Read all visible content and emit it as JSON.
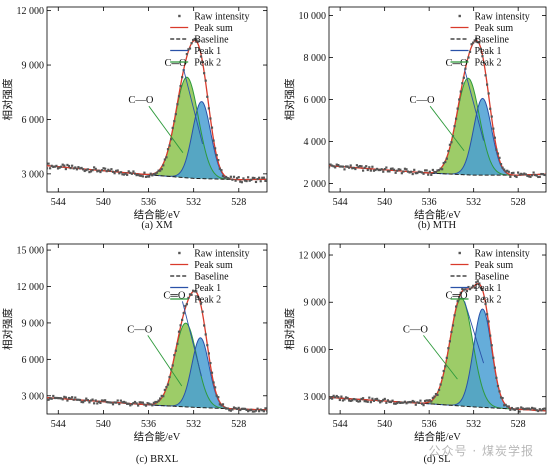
{
  "figure": {
    "watermark": "公众号 · 煤炭学报"
  },
  "legend": {
    "raw": "Raw intensity",
    "sum": "Peak sum",
    "baseline": "Baseline",
    "peak1": "Peak 1",
    "peak2": "Peak 2"
  },
  "colors": {
    "raw": "#555555",
    "sum": "#d93a2b",
    "baseline": "#222222",
    "peak1_line": "#2a52a8",
    "peak1_fill": "#4a9fd3",
    "peak2_line": "#2e9a3c",
    "peak2_fill": "#8cc34e",
    "annot_co_double": "#2a52a8",
    "annot_co_single": "#2e9a3c"
  },
  "chart_data": [
    {
      "type": "line",
      "panel_label": "(a) XM",
      "ylabel": "相对强度",
      "xlabel": "结合能/eV",
      "xlim": [
        545,
        525.5
      ],
      "ylim": [
        2000,
        12200
      ],
      "xticks": [
        544,
        540,
        536,
        532,
        528
      ],
      "yticks": [
        3000,
        6000,
        9000,
        12000
      ],
      "ytick_labels": [
        "3 000",
        "6 000",
        "9 000",
        "12 000"
      ],
      "baseline": {
        "x": [
          545,
          536,
          532,
          528,
          525.5
        ],
        "y": [
          3450,
          2950,
          2750,
          2680,
          2700
        ]
      },
      "peaks": [
        {
          "name": "Peak 1",
          "center": 531.3,
          "height": 4250,
          "fwhm": 1.9
        },
        {
          "name": "Peak 2",
          "center": 532.6,
          "height": 5550,
          "fwhm": 2.4
        }
      ],
      "annotations": [
        {
          "text": "C═O",
          "peak": "Peak 1"
        },
        {
          "text": "C—O",
          "peak": "Peak 2"
        }
      ]
    },
    {
      "type": "line",
      "panel_label": "(b) MTH",
      "ylabel": "相对强度",
      "xlabel": "结合能/eV",
      "xlim": [
        545,
        525.5
      ],
      "ylim": [
        1600,
        10400
      ],
      "xticks": [
        544,
        540,
        536,
        532,
        528
      ],
      "yticks": [
        2000,
        4000,
        6000,
        8000,
        10000
      ],
      "ytick_labels": [
        "2 000",
        "4 000",
        "6 000",
        "8 000",
        "10 000"
      ],
      "baseline": {
        "x": [
          545,
          536,
          532,
          528,
          525.5
        ],
        "y": [
          2850,
          2500,
          2400,
          2400,
          2450
        ]
      },
      "peaks": [
        {
          "name": "Peak 1",
          "center": 531.2,
          "height": 3650,
          "fwhm": 1.9
        },
        {
          "name": "Peak 2",
          "center": 532.5,
          "height": 4600,
          "fwhm": 2.4
        }
      ],
      "annotations": [
        {
          "text": "C═O",
          "peak": "Peak 1"
        },
        {
          "text": "C—O",
          "peak": "Peak 2"
        }
      ]
    },
    {
      "type": "line",
      "panel_label": "(c) BRXL",
      "ylabel": "相对强度",
      "xlabel": "结合能/eV",
      "xlim": [
        545,
        525.5
      ],
      "ylim": [
        1500,
        15500
      ],
      "xticks": [
        544,
        540,
        536,
        532,
        528
      ],
      "yticks": [
        3000,
        6000,
        9000,
        12000,
        15000
      ],
      "ytick_labels": [
        "3 000",
        "6 000",
        "9 000",
        "12 000",
        "15 000"
      ],
      "baseline": {
        "x": [
          545,
          536,
          532,
          528,
          525.5
        ],
        "y": [
          2850,
          2250,
          2050,
          1900,
          1850
        ]
      },
      "peaks": [
        {
          "name": "Peak 1",
          "center": 531.4,
          "height": 5750,
          "fwhm": 1.8
        },
        {
          "name": "Peak 2",
          "center": 532.7,
          "height": 6900,
          "fwhm": 2.3
        }
      ],
      "annotations": [
        {
          "text": "C═O",
          "peak": "Peak 1"
        },
        {
          "text": "C—O",
          "peak": "Peak 2"
        }
      ]
    },
    {
      "type": "line",
      "panel_label": "(d) SL",
      "ylabel": "相对强度",
      "xlabel": "结合能/eV",
      "xlim": [
        545,
        525.5
      ],
      "ylim": [
        1900,
        12700
      ],
      "xticks": [
        544,
        540,
        536,
        532,
        528
      ],
      "yticks": [
        3000,
        6000,
        9000,
        12000
      ],
      "ytick_labels": [
        "3 000",
        "6 000",
        "9 000",
        "12 000"
      ],
      "baseline": {
        "x": [
          545,
          536,
          532,
          528,
          525.5
        ],
        "y": [
          2950,
          2550,
          2350,
          2200,
          2100
        ]
      },
      "peaks": [
        {
          "name": "Peak 1",
          "center": 531.2,
          "height": 6250,
          "fwhm": 1.9
        },
        {
          "name": "Peak 2",
          "center": 533.1,
          "height": 6850,
          "fwhm": 2.4
        }
      ],
      "annotations": [
        {
          "text": "C═O",
          "peak": "Peak 1"
        },
        {
          "text": "C—O",
          "peak": "Peak 2"
        }
      ]
    }
  ]
}
